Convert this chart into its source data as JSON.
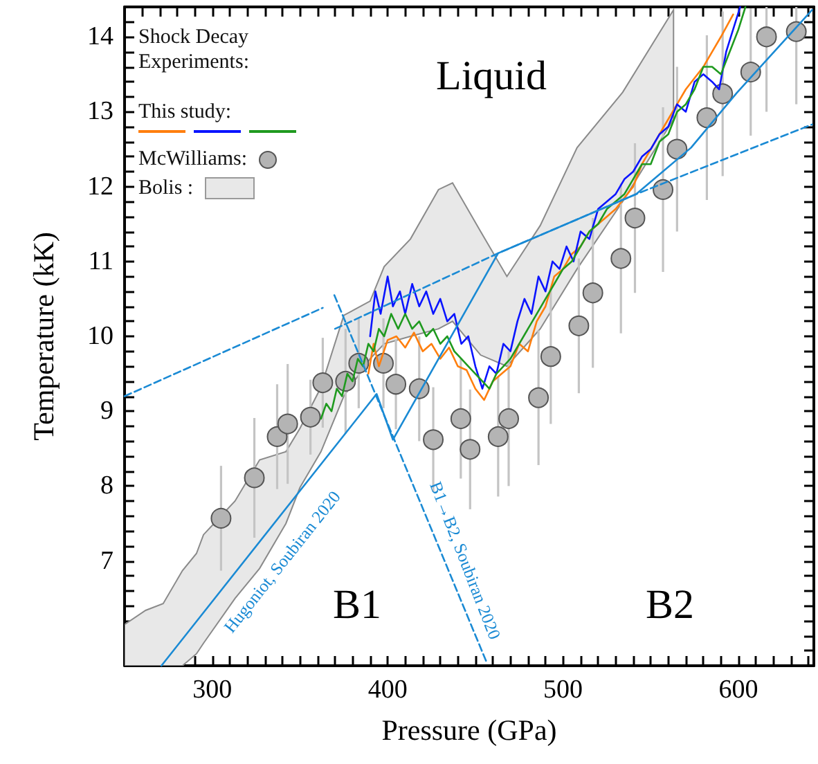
{
  "chart_data": {
    "type": "line",
    "xlabel": "Pressure (GPa)",
    "ylabel": "Temperature (kK)",
    "xlim": [
      250,
      643
    ],
    "ylim": [
      5.6,
      14.4
    ],
    "xticks": [
      {
        "value": 250,
        "label": null
      },
      {
        "value": 260,
        "label": null
      },
      {
        "value": 270,
        "label": null
      },
      {
        "value": 280,
        "label": null
      },
      {
        "value": 290,
        "label": null
      },
      300,
      {
        "value": 310,
        "label": null
      },
      {
        "value": 320,
        "label": null
      },
      {
        "value": 330,
        "label": null
      },
      {
        "value": 340,
        "label": null
      },
      {
        "value": 350,
        "label": null
      },
      {
        "value": 360,
        "label": null
      },
      {
        "value": 370,
        "label": null
      },
      {
        "value": 380,
        "label": null
      },
      {
        "value": 390,
        "label": null
      },
      400,
      {
        "value": 410,
        "label": null
      },
      {
        "value": 420,
        "label": null
      },
      {
        "value": 430,
        "label": null
      },
      {
        "value": 440,
        "label": null
      },
      {
        "value": 450,
        "label": null
      },
      {
        "value": 460,
        "label": null
      },
      {
        "value": 470,
        "label": null
      },
      {
        "value": 480,
        "label": null
      },
      {
        "value": 490,
        "label": null
      },
      500,
      {
        "value": 510,
        "label": null
      },
      {
        "value": 520,
        "label": null
      },
      {
        "value": 530,
        "label": null
      },
      {
        "value": 540,
        "label": null
      },
      {
        "value": 550,
        "label": null
      },
      {
        "value": 560,
        "label": null
      },
      {
        "value": 570,
        "label": null
      },
      {
        "value": 580,
        "label": null
      },
      {
        "value": 590,
        "label": null
      },
      600,
      {
        "value": 610,
        "label": null
      },
      {
        "value": 620,
        "label": null
      },
      {
        "value": 630,
        "label": null
      },
      {
        "value": 640,
        "label": null
      }
    ],
    "yticks": [
      {
        "value": 5.8,
        "label": null
      },
      {
        "value": 6,
        "label": null
      },
      {
        "value": 6.2,
        "label": null
      },
      {
        "value": 6.4,
        "label": null
      },
      {
        "value": 6.6,
        "label": null
      },
      {
        "value": 6.8,
        "label": null
      },
      7,
      {
        "value": 7.2,
        "label": null
      },
      {
        "value": 7.4,
        "label": null
      },
      {
        "value": 7.6,
        "label": null
      },
      {
        "value": 7.8,
        "label": null
      },
      8,
      {
        "value": 8.2,
        "label": null
      },
      {
        "value": 8.4,
        "label": null
      },
      {
        "value": 8.6,
        "label": null
      },
      {
        "value": 8.8,
        "label": null
      },
      9,
      {
        "value": 9.2,
        "label": null
      },
      {
        "value": 9.4,
        "label": null
      },
      {
        "value": 9.6,
        "label": null
      },
      {
        "value": 9.8,
        "label": null
      },
      10,
      {
        "value": 10.2,
        "label": null
      },
      {
        "value": 10.4,
        "label": null
      },
      {
        "value": 10.6,
        "label": null
      },
      {
        "value": 10.8,
        "label": null
      },
      11,
      {
        "value": 11.2,
        "label": null
      },
      {
        "value": 11.4,
        "label": null
      },
      {
        "value": 11.6,
        "label": null
      },
      {
        "value": 11.8,
        "label": null
      },
      12,
      {
        "value": 12.2,
        "label": null
      },
      {
        "value": 12.4,
        "label": null
      },
      {
        "value": 12.6,
        "label": null
      },
      {
        "value": 12.8,
        "label": null
      },
      13,
      {
        "value": 13.2,
        "label": null
      },
      {
        "value": 13.4,
        "label": null
      },
      {
        "value": 13.6,
        "label": null
      },
      {
        "value": 13.8,
        "label": null
      },
      14,
      {
        "value": 14.2,
        "label": null
      },
      {
        "value": 14.4,
        "label": null
      }
    ],
    "legend": "top left",
    "legend_title": "Shock Decay Experiments:",
    "annotations": [
      "Liquid",
      "B1",
      "B2",
      "Hugoniot, Soubiran 2020",
      "B1→B2, Soubiran 2020",
      "This study:"
    ],
    "series": [
      {
        "color": "#ff7f0e",
        "x": [
          389,
          392,
          395,
          400,
          405,
          410,
          415,
          420,
          425,
          430,
          435,
          440,
          445,
          450,
          455,
          460,
          465,
          470,
          475,
          480,
          485,
          490,
          495,
          500,
          505,
          510,
          515,
          520,
          525,
          530,
          535,
          540,
          545,
          550,
          555,
          560,
          565,
          570,
          575,
          580,
          585,
          590,
          597
        ],
        "values": [
          9.5,
          9.9,
          9.6,
          9.95,
          10.0,
          9.85,
          10.05,
          9.8,
          9.9,
          9.7,
          9.85,
          9.6,
          9.55,
          9.3,
          9.15,
          9.4,
          9.5,
          9.6,
          9.9,
          9.8,
          10.2,
          10.4,
          10.8,
          10.9,
          11.1,
          11.2,
          11.4,
          11.5,
          11.6,
          11.7,
          11.85,
          12.0,
          12.3,
          12.5,
          12.7,
          12.9,
          13.1,
          13.3,
          13.45,
          13.6,
          13.8,
          14.0,
          14.3
        ]
      },
      {
        "color": "#0a14ff",
        "x": [
          390,
          393,
          396,
          400,
          403,
          407,
          410,
          414,
          418,
          422,
          426,
          430,
          434,
          438,
          442,
          446,
          450,
          454,
          458,
          462,
          466,
          470,
          474,
          478,
          482,
          486,
          490,
          494,
          498,
          502,
          506,
          510,
          515,
          520,
          525,
          530,
          535,
          540,
          545,
          550,
          555,
          560,
          565,
          570,
          575,
          580,
          585,
          589,
          593,
          597,
          601
        ],
        "values": [
          10.0,
          10.6,
          10.3,
          10.8,
          10.4,
          10.6,
          10.3,
          10.7,
          10.4,
          10.6,
          10.3,
          10.5,
          10.2,
          10.3,
          9.9,
          10.0,
          9.6,
          9.3,
          9.6,
          9.5,
          9.9,
          9.8,
          10.2,
          10.5,
          10.3,
          10.8,
          10.6,
          11.0,
          10.9,
          11.2,
          11.0,
          11.4,
          11.3,
          11.7,
          11.8,
          11.9,
          12.1,
          12.2,
          12.4,
          12.5,
          12.7,
          12.8,
          13.1,
          13.0,
          13.4,
          13.5,
          13.4,
          13.3,
          13.8,
          14.1,
          14.4
        ]
      },
      {
        "color": "#1f9a1f",
        "x": [
          362,
          365,
          368,
          371,
          374,
          377,
          380,
          383,
          386,
          389,
          392,
          395,
          398,
          402,
          406,
          410,
          414,
          418,
          422,
          426,
          430,
          434,
          438,
          442,
          446,
          450,
          454,
          458,
          462,
          466,
          470,
          475,
          480,
          485,
          490,
          495,
          500,
          505,
          510,
          515,
          520,
          525,
          530,
          535,
          540,
          545,
          550,
          555,
          560,
          565,
          570,
          575,
          580,
          585,
          590,
          595,
          600,
          604
        ],
        "values": [
          8.9,
          9.1,
          9.0,
          9.3,
          9.2,
          9.5,
          9.4,
          9.7,
          9.6,
          9.9,
          9.8,
          10.1,
          10.0,
          10.3,
          10.1,
          10.3,
          10.1,
          10.2,
          10.0,
          10.1,
          9.9,
          10.0,
          9.8,
          9.7,
          9.6,
          9.5,
          9.4,
          9.3,
          9.5,
          9.6,
          9.7,
          9.9,
          10.1,
          10.3,
          10.5,
          10.7,
          10.9,
          11.0,
          11.2,
          11.4,
          11.5,
          11.7,
          11.8,
          11.9,
          12.1,
          12.3,
          12.3,
          12.6,
          12.7,
          13.0,
          13.1,
          13.3,
          13.6,
          13.6,
          13.5,
          13.8,
          14.1,
          14.4
        ]
      },
      {
        "type": "scatter",
        "name": "McWilliams:",
        "color": "#b4b4b4",
        "marker": "circle",
        "x": [
          305,
          324,
          337,
          343,
          356,
          363,
          376,
          383.5,
          397.6,
          404.7,
          418,
          426,
          441.7,
          447,
          463,
          469,
          486,
          493,
          509,
          517,
          533,
          541,
          557,
          565,
          582,
          591,
          607,
          616,
          633
        ],
        "values": [
          7.57,
          8.11,
          8.66,
          8.83,
          8.92,
          9.38,
          9.4,
          9.64,
          9.64,
          9.36,
          9.3,
          8.62,
          8.9,
          8.49,
          8.66,
          8.9,
          9.18,
          9.73,
          10.14,
          10.58,
          11.04,
          11.58,
          11.96,
          12.5,
          12.92,
          13.24,
          13.53,
          14.0,
          14.07
        ],
        "errors": [
          0.7,
          0.8,
          0.7,
          0.8,
          0.5,
          0.6,
          0.7,
          0.6,
          0.6,
          0.6,
          0.7,
          0.7,
          0.8,
          0.8,
          0.8,
          0.9,
          0.9,
          0.9,
          0.9,
          1.0,
          1.0,
          1.0,
          1.1,
          1.1,
          1.1,
          1.1,
          0.85,
          [
            13.0,
            14.4
          ],
          [
            13.1,
            14.4
          ]
        ]
      },
      {
        "name": "Bolis :",
        "color": "#e8e8e8",
        "x": [
          250,
          262,
          272,
          283,
          291,
          295,
          313,
          327,
          342,
          350,
          362,
          375,
          390,
          398,
          413,
          429,
          437,
          453,
          468,
          487,
          508,
          534,
          563
        ],
        "values": [
          null,
          null,
          null,
          null,
          null,
          null,
          null,
          null,
          null,
          null,
          null,
          null,
          null,
          null,
          null,
          null,
          null,
          null,
          null,
          null,
          null,
          null,
          null
        ],
        "lower": [
          5.6,
          5.6,
          5.6,
          5.6,
          5.76,
          5.9,
          6.5,
          6.9,
          7.5,
          7.98,
          8.46,
          9.2,
          9.7,
          9.9,
          10.0,
          10.1,
          10.2,
          9.75,
          9.6,
          10.1,
          10.9,
          11.8,
          12.9
        ],
        "upper": [
          6.15,
          6.34,
          6.43,
          6.87,
          7.1,
          7.35,
          7.8,
          8.35,
          8.46,
          8.77,
          9.32,
          10.28,
          10.47,
          10.93,
          11.3,
          11.96,
          12.05,
          11.4,
          10.8,
          11.48,
          12.52,
          13.26,
          14.36
        ]
      },
      {
        "color": "#1a8ad4",
        "x": [
          271,
          393.7,
          403,
          463,
          541.7,
          573,
          599,
          642
        ],
        "values": [
          5.6,
          9.23,
          8.62,
          11.11,
          11.9,
          12.52,
          13.25,
          14.36
        ]
      },
      {
        "color": "#1a8ad4",
        "line_style": "dashed",
        "x": [
          250,
          363,
          366,
          370,
          463,
          541.7,
          642
        ],
        "values": [
          9.2,
          10.38,
          null,
          10.1,
          11.11,
          11.9,
          12.83
        ]
      },
      {
        "color": "#1a8ad4",
        "line_style": "dashed",
        "x": [
          369.6,
          456.7
        ],
        "values": [
          10.55,
          5.63
        ]
      }
    ]
  }
}
